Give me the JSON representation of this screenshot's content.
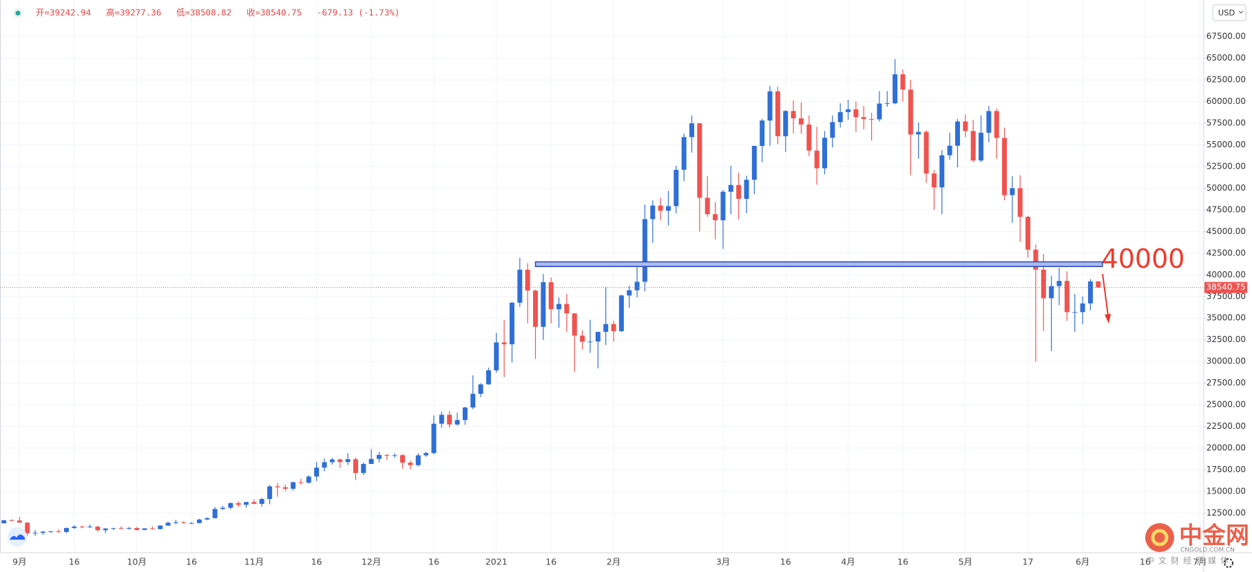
{
  "chart_data": {
    "type": "candlestick",
    "legend": {
      "open": "开=39242.94",
      "high": "高=39277.36",
      "low": "低=38508.82",
      "close": "收=38540.75",
      "change": "-679.13 (-1.73%)"
    },
    "currency": "USD",
    "up_color": "#2f6fd6",
    "down_color": "#ef5350",
    "grid": true,
    "ylim": [
      7930,
      71720
    ],
    "yticks": [
      {
        "value": 12500,
        "label": "12500.00"
      },
      {
        "value": 15000,
        "label": "15000.00"
      },
      {
        "value": 17500,
        "label": "17500.00"
      },
      {
        "value": 20000,
        "label": "20000.00"
      },
      {
        "value": 22500,
        "label": "22500.00"
      },
      {
        "value": 25000,
        "label": "25000.00"
      },
      {
        "value": 27500,
        "label": "27500.00"
      },
      {
        "value": 30000,
        "label": "30000.00"
      },
      {
        "value": 32500,
        "label": "32500.00"
      },
      {
        "value": 35000,
        "label": "35000.00"
      },
      {
        "value": 37500,
        "label": "37500.00"
      },
      {
        "value": 40000,
        "label": "40000.00"
      },
      {
        "value": 42500,
        "label": "42500.00"
      },
      {
        "value": 45000,
        "label": "45000.00"
      },
      {
        "value": 47500,
        "label": "47500.00"
      },
      {
        "value": 50000,
        "label": "50000.00"
      },
      {
        "value": 52500,
        "label": "52500.00"
      },
      {
        "value": 55000,
        "label": "55000.00"
      },
      {
        "value": 57500,
        "label": "57500.00"
      },
      {
        "value": 60000,
        "label": "60000.00"
      },
      {
        "value": 62500,
        "label": "62500.00"
      },
      {
        "value": 65000,
        "label": "65000.00"
      },
      {
        "value": 67500,
        "label": "67500.00"
      }
    ],
    "categories": [
      null,
      null,
      "9月",
      null,
      null,
      null,
      null,
      null,
      null,
      "16",
      null,
      null,
      null,
      null,
      null,
      null,
      null,
      "10月",
      null,
      null,
      null,
      null,
      null,
      null,
      "16",
      null,
      null,
      null,
      null,
      null,
      null,
      null,
      "11月",
      null,
      null,
      null,
      null,
      null,
      null,
      null,
      "16",
      null,
      null,
      null,
      null,
      null,
      null,
      "12月",
      null,
      null,
      null,
      null,
      null,
      null,
      null,
      "16",
      null,
      null,
      null,
      null,
      null,
      null,
      null,
      "2021",
      null,
      null,
      null,
      null,
      null,
      null,
      "16",
      null,
      null,
      null,
      null,
      null,
      null,
      null,
      "2月",
      null,
      null,
      null,
      null,
      null,
      null,
      null,
      null,
      null,
      null,
      null,
      null,
      null,
      "3月",
      null,
      null,
      null,
      null,
      null,
      null,
      null,
      "16",
      null,
      null,
      null,
      null,
      null,
      null,
      null,
      "4月",
      null,
      null,
      null,
      null,
      null,
      null,
      "16",
      null,
      null,
      null,
      null,
      null,
      null,
      null,
      "5月",
      null,
      null,
      null,
      null,
      null,
      null,
      null,
      "17",
      null,
      null,
      null,
      null,
      null,
      null,
      "6月",
      null,
      null,
      null,
      null,
      null,
      null,
      null,
      "16",
      null,
      null,
      null,
      null,
      null,
      null,
      "7月"
    ],
    "ohlc": [
      [
        11330,
        11700,
        11300,
        11680
      ],
      [
        11680,
        11800,
        11540,
        11650
      ],
      [
        11650,
        12050,
        11620,
        11400
      ],
      [
        11400,
        11450,
        9900,
        10170
      ],
      [
        10170,
        10550,
        9880,
        10230
      ],
      [
        10230,
        10430,
        10000,
        10360
      ],
      [
        10360,
        10440,
        10220,
        10390
      ],
      [
        10390,
        10640,
        10260,
        10330
      ],
      [
        10330,
        10820,
        10200,
        10780
      ],
      [
        10780,
        11100,
        10680,
        10940
      ],
      [
        10940,
        11040,
        10770,
        10920
      ],
      [
        10920,
        11180,
        10800,
        10940
      ],
      [
        10940,
        11020,
        10360,
        10530
      ],
      [
        10530,
        10780,
        10190,
        10730
      ],
      [
        10730,
        10800,
        10550,
        10770
      ],
      [
        10770,
        10960,
        10640,
        10690
      ],
      [
        10690,
        10900,
        10600,
        10780
      ],
      [
        10780,
        10900,
        10500,
        10560
      ],
      [
        10560,
        10750,
        10530,
        10740
      ],
      [
        10740,
        10960,
        10600,
        10660
      ],
      [
        10660,
        11100,
        10630,
        11060
      ],
      [
        11060,
        11490,
        11050,
        11390
      ],
      [
        11390,
        11720,
        11230,
        11420
      ],
      [
        11420,
        11570,
        11280,
        11360
      ],
      [
        11360,
        11480,
        11240,
        11360
      ],
      [
        11360,
        11840,
        11320,
        11760
      ],
      [
        11760,
        12020,
        11700,
        11920
      ],
      [
        11920,
        13200,
        11900,
        12980
      ],
      [
        12980,
        13330,
        12880,
        13120
      ],
      [
        13120,
        13760,
        12950,
        13650
      ],
      [
        13650,
        13860,
        13210,
        13460
      ],
      [
        13460,
        13800,
        13130,
        13780
      ],
      [
        13780,
        14100,
        13550,
        13570
      ],
      [
        13570,
        14250,
        13240,
        14130
      ],
      [
        14130,
        15750,
        13520,
        15590
      ],
      [
        15590,
        15970,
        14400,
        15480
      ],
      [
        15480,
        15800,
        15060,
        15310
      ],
      [
        15310,
        16120,
        15110,
        16070
      ],
      [
        16070,
        16480,
        15790,
        16010
      ],
      [
        16010,
        16870,
        15900,
        16720
      ],
      [
        16720,
        18400,
        16200,
        17750
      ],
      [
        17750,
        18800,
        17330,
        18380
      ],
      [
        18380,
        18900,
        18100,
        18690
      ],
      [
        18690,
        18800,
        17700,
        18400
      ],
      [
        18400,
        19420,
        18050,
        18720
      ],
      [
        18720,
        18920,
        16330,
        17130
      ],
      [
        17130,
        18350,
        16910,
        18180
      ],
      [
        18180,
        19880,
        18170,
        18760
      ],
      [
        18760,
        19570,
        18350,
        19210
      ],
      [
        19210,
        19340,
        18640,
        19150
      ],
      [
        19150,
        19420,
        18900,
        19190
      ],
      [
        19190,
        19300,
        17650,
        18320
      ],
      [
        18320,
        18560,
        17580,
        18040
      ],
      [
        18040,
        19420,
        17900,
        19170
      ],
      [
        19170,
        19570,
        19000,
        19430
      ],
      [
        19430,
        23770,
        19300,
        22820
      ],
      [
        22820,
        24200,
        22350,
        23850
      ],
      [
        23850,
        24300,
        22400,
        22730
      ],
      [
        22730,
        24100,
        22600,
        23240
      ],
      [
        23240,
        24790,
        22700,
        24690
      ],
      [
        24690,
        28400,
        24500,
        26270
      ],
      [
        26270,
        27500,
        25900,
        27360
      ],
      [
        27360,
        29300,
        27320,
        28980
      ],
      [
        28980,
        33300,
        28700,
        32200
      ],
      [
        32200,
        34800,
        28200,
        31990
      ],
      [
        31990,
        36900,
        29900,
        36780
      ],
      [
        36780,
        41950,
        36300,
        40590
      ],
      [
        40590,
        41350,
        34400,
        38190
      ],
      [
        38190,
        38300,
        30300,
        34000
      ],
      [
        34000,
        40100,
        32500,
        39150
      ],
      [
        39150,
        39700,
        34400,
        36030
      ],
      [
        36030,
        37400,
        33900,
        36640
      ],
      [
        36640,
        37800,
        33400,
        35550
      ],
      [
        35550,
        35600,
        28800,
        32990
      ],
      [
        32990,
        33600,
        31400,
        32280
      ],
      [
        32280,
        34800,
        31000,
        32300
      ],
      [
        32300,
        33100,
        29200,
        33420
      ],
      [
        33420,
        38600,
        31900,
        34320
      ],
      [
        34320,
        34700,
        32300,
        33500
      ],
      [
        33500,
        37700,
        33400,
        37620
      ],
      [
        37620,
        38700,
        36200,
        38220
      ],
      [
        38220,
        40950,
        37400,
        39200
      ],
      [
        39200,
        48100,
        38100,
        46430
      ],
      [
        46430,
        48600,
        43700,
        48000
      ],
      [
        48000,
        48900,
        46300,
        47400
      ],
      [
        47400,
        49700,
        45700,
        47930
      ],
      [
        47930,
        52600,
        47100,
        52120
      ],
      [
        52120,
        56300,
        50800,
        55900
      ],
      [
        55900,
        58400,
        54100,
        57490
      ],
      [
        57490,
        57500,
        45000,
        48890
      ],
      [
        48890,
        51370,
        46700,
        47000
      ],
      [
        47000,
        48400,
        44100,
        46300
      ],
      [
        46300,
        49800,
        43000,
        49590
      ],
      [
        49590,
        52600,
        47000,
        50370
      ],
      [
        50370,
        51800,
        46400,
        48770
      ],
      [
        48770,
        51450,
        47100,
        50970
      ],
      [
        50970,
        54900,
        49300,
        54880
      ],
      [
        54880,
        58000,
        53000,
        57810
      ],
      [
        57810,
        61800,
        54900,
        61180
      ],
      [
        61180,
        61700,
        55100,
        56000
      ],
      [
        56000,
        59000,
        54200,
        58910
      ],
      [
        58910,
        60100,
        56300,
        58060
      ],
      [
        58060,
        59900,
        56300,
        57350
      ],
      [
        57350,
        58400,
        53700,
        54340
      ],
      [
        54340,
        57100,
        50400,
        52300
      ],
      [
        52300,
        56600,
        51600,
        55820
      ],
      [
        55820,
        58400,
        54700,
        57630
      ],
      [
        57630,
        59800,
        57000,
        58780
      ],
      [
        58780,
        60200,
        57900,
        59100
      ],
      [
        59100,
        60000,
        56500,
        58200
      ],
      [
        58200,
        59500,
        56800,
        57980
      ],
      [
        57980,
        58700,
        55500,
        57950
      ],
      [
        57950,
        61200,
        57700,
        59770
      ],
      [
        59770,
        61200,
        59400,
        59800
      ],
      [
        59800,
        64900,
        59700,
        63150
      ],
      [
        63150,
        63700,
        60000,
        61380
      ],
      [
        61380,
        62500,
        51500,
        56200
      ],
      [
        56200,
        57600,
        53400,
        56500
      ],
      [
        56500,
        56700,
        50600,
        51700
      ],
      [
        51700,
        52100,
        47500,
        50100
      ],
      [
        50100,
        54400,
        47000,
        53800
      ],
      [
        53800,
        56400,
        53300,
        54900
      ],
      [
        54900,
        58000,
        52400,
        57700
      ],
      [
        57700,
        58500,
        55900,
        56600
      ],
      [
        56600,
        57900,
        53000,
        53200
      ],
      [
        53200,
        58400,
        53000,
        56400
      ],
      [
        56400,
        59500,
        55300,
        58900
      ],
      [
        58900,
        59200,
        53400,
        55800
      ],
      [
        55800,
        57000,
        48600,
        49200
      ],
      [
        49200,
        51400,
        46000,
        50000
      ],
      [
        50000,
        51500,
        43800,
        46700
      ],
      [
        46700,
        46800,
        42000,
        42900
      ],
      [
        42900,
        43500,
        30000,
        40600
      ],
      [
        40600,
        42400,
        33500,
        37300
      ],
      [
        37300,
        39900,
        31200,
        38700
      ],
      [
        38700,
        40800,
        36500,
        39300
      ],
      [
        39300,
        40400,
        34700,
        35700
      ],
      [
        35700,
        37800,
        33400,
        35700
      ],
      [
        35700,
        37500,
        34300,
        36700
      ],
      [
        36700,
        39500,
        35900,
        39240
      ],
      [
        39242.94,
        39277.36,
        38508.82,
        38540.75
      ],
      null,
      null,
      null,
      null,
      null,
      null,
      null,
      null,
      null,
      null,
      null,
      null,
      null
    ],
    "annotation": {
      "text": "40000",
      "band": [
        40960,
        41500
      ]
    },
    "watermark": {
      "name": "中金网",
      "domain": "CNGOLD.COM.CN",
      "slogan": "中文财经新媒体"
    }
  }
}
